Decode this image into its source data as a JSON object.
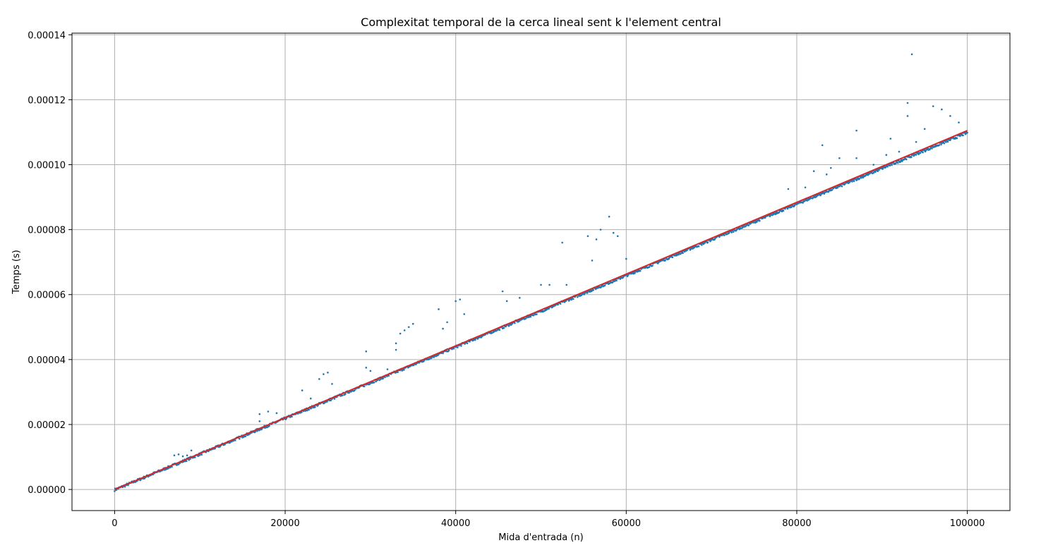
{
  "chart_data": {
    "type": "scatter",
    "title": "Complexitat temporal de la cerca lineal sent k l'element central",
    "xlabel": "Mida d'entrada (n)",
    "ylabel": "Temps (s)",
    "xlim": [
      -5000,
      105000
    ],
    "ylim": [
      -6.5e-06,
      0.0001405
    ],
    "x_ticks": [
      0,
      20000,
      40000,
      60000,
      80000,
      100000
    ],
    "x_tick_labels": [
      "0",
      "20000",
      "40000",
      "60000",
      "80000",
      "100000"
    ],
    "y_ticks": [
      0,
      2e-05,
      4e-05,
      6e-05,
      8e-05,
      0.0001,
      0.00012,
      0.00014
    ],
    "y_tick_labels": [
      "0.00000",
      "0.00002",
      "0.00004",
      "0.00006",
      "0.00008",
      "0.00010",
      "0.00012",
      "0.00014"
    ],
    "grid": true,
    "series": [
      {
        "type": "scatter",
        "color": "#1f77b4",
        "x_range": [
          0,
          100000
        ],
        "trend_slope": 1.1e-09,
        "points": [
          [
            7000,
            1.05e-05
          ],
          [
            7500,
            1.08e-05
          ],
          [
            8000,
            1.02e-05
          ],
          [
            8500,
            1.05e-05
          ],
          [
            9000,
            1.2e-05
          ],
          [
            17000,
            2.32e-05
          ],
          [
            17000,
            2.1e-05
          ],
          [
            18000,
            2.4e-05
          ],
          [
            19000,
            2.35e-05
          ],
          [
            22000,
            3.05e-05
          ],
          [
            23000,
            2.8e-05
          ],
          [
            24000,
            3.4e-05
          ],
          [
            24500,
            3.55e-05
          ],
          [
            25000,
            3.6e-05
          ],
          [
            25500,
            3.25e-05
          ],
          [
            29500,
            4.25e-05
          ],
          [
            29500,
            3.75e-05
          ],
          [
            30000,
            3.65e-05
          ],
          [
            32000,
            3.7e-05
          ],
          [
            33000,
            4.5e-05
          ],
          [
            33000,
            4.3e-05
          ],
          [
            33500,
            4.8e-05
          ],
          [
            34000,
            4.9e-05
          ],
          [
            34500,
            5e-05
          ],
          [
            35000,
            5.1e-05
          ],
          [
            38000,
            5.55e-05
          ],
          [
            38500,
            4.95e-05
          ],
          [
            39000,
            5.15e-05
          ],
          [
            40000,
            5.8e-05
          ],
          [
            40500,
            5.85e-05
          ],
          [
            41000,
            5.4e-05
          ],
          [
            45500,
            6.1e-05
          ],
          [
            46000,
            5.8e-05
          ],
          [
            47500,
            5.9e-05
          ],
          [
            50000,
            6.3e-05
          ],
          [
            51000,
            6.3e-05
          ],
          [
            52500,
            7.6e-05
          ],
          [
            53000,
            6.3e-05
          ],
          [
            55500,
            7.8e-05
          ],
          [
            56000,
            7.05e-05
          ],
          [
            56500,
            7.7e-05
          ],
          [
            57000,
            8e-05
          ],
          [
            58000,
            8.4e-05
          ],
          [
            58500,
            7.9e-05
          ],
          [
            59000,
            7.8e-05
          ],
          [
            60000,
            7.1e-05
          ],
          [
            79000,
            9.25e-05
          ],
          [
            81000,
            9.3e-05
          ],
          [
            82000,
            9.8e-05
          ],
          [
            83000,
            0.000106
          ],
          [
            83500,
            9.7e-05
          ],
          [
            84000,
            9.9e-05
          ],
          [
            85000,
            0.000102
          ],
          [
            87000,
            0.0001105
          ],
          [
            87000,
            0.000102
          ],
          [
            89000,
            0.0001
          ],
          [
            90500,
            0.000103
          ],
          [
            91000,
            0.000108
          ],
          [
            92000,
            0.000104
          ],
          [
            93000,
            0.000119
          ],
          [
            93000,
            0.000115
          ],
          [
            93500,
            0.000134
          ],
          [
            94000,
            0.000107
          ],
          [
            95000,
            0.000111
          ],
          [
            96000,
            0.000118
          ],
          [
            97000,
            0.000117
          ],
          [
            98000,
            0.000115
          ],
          [
            99000,
            0.000113
          ]
        ]
      },
      {
        "type": "line",
        "color": "#d62728",
        "x": [
          0,
          100000
        ],
        "y": [
          0,
          0.0001105
        ]
      }
    ]
  }
}
